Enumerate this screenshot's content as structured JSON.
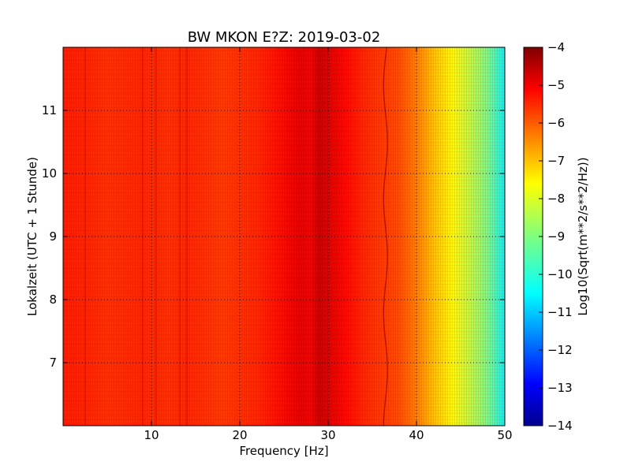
{
  "chart_data": {
    "type": "heatmap",
    "title": "BW MKON E?Z: 2019-03-02",
    "xlabel": "Frequency [Hz]",
    "ylabel": "Lokalzeit (UTC + 1 Stunde)",
    "xlim": [
      0,
      50
    ],
    "ylim": [
      12.0,
      6.0
    ],
    "y_inverted": true,
    "x_ticks": [
      10,
      20,
      30,
      40,
      50
    ],
    "x_tick_labels": [
      "10",
      "20",
      "30",
      "40",
      "50"
    ],
    "y_ticks": [
      7,
      8,
      9,
      10,
      11
    ],
    "y_tick_labels": [
      "7",
      "8",
      "9",
      "10",
      "11"
    ],
    "grid": true,
    "colormap": "jet",
    "colorbar": {
      "label": "Log10(Sqrt(m**2/s**2/Hz))",
      "min": -14,
      "max": -4,
      "ticks": [
        -4,
        -5,
        -6,
        -7,
        -8,
        -9,
        -10,
        -11,
        -12,
        -13,
        -14
      ],
      "tick_labels": [
        "−4",
        "−5",
        "−6",
        "−7",
        "−8",
        "−9",
        "−10",
        "−11",
        "−12",
        "−13",
        "−14"
      ]
    },
    "spectral_profile": {
      "frequency_hz": [
        0,
        3,
        5,
        9,
        12,
        14,
        18,
        22,
        24,
        26,
        27,
        28,
        29,
        30,
        32,
        34,
        36,
        38,
        40,
        42,
        44,
        46,
        48,
        50
      ],
      "log10_amplitude": [
        -5.5,
        -5.6,
        -5.7,
        -5.6,
        -5.7,
        -5.6,
        -5.8,
        -5.6,
        -5.4,
        -5.1,
        -5.0,
        -5.1,
        -4.7,
        -4.9,
        -5.3,
        -5.6,
        -5.8,
        -6.0,
        -6.5,
        -7.2,
        -7.8,
        -8.4,
        -9.1,
        -10.3
      ]
    }
  }
}
